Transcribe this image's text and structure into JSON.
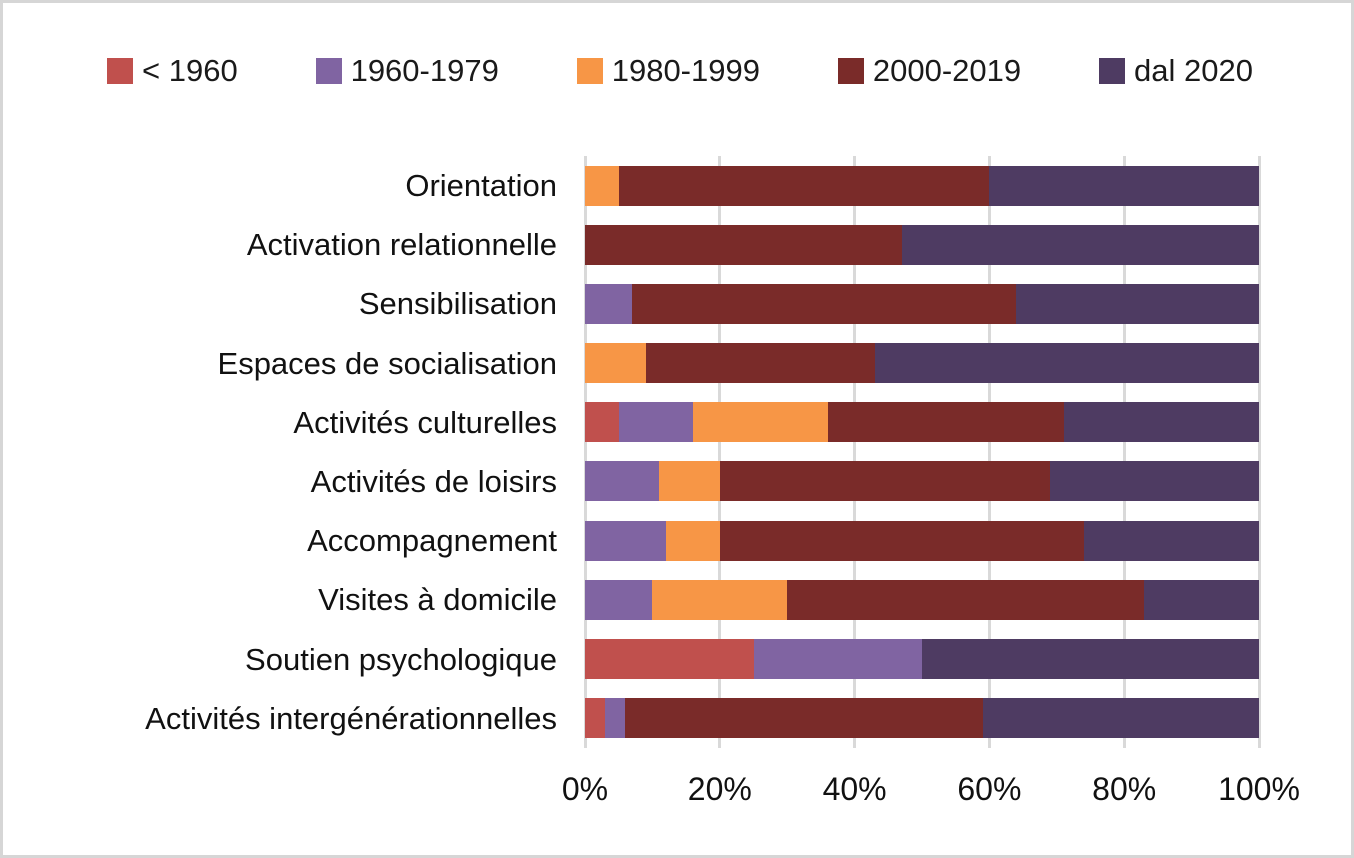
{
  "chart_data": {
    "type": "bar",
    "orientation": "horizontal",
    "stacked": true,
    "unit": "percent",
    "xlim": [
      0,
      100
    ],
    "grid": "vertical",
    "legend_position": "top",
    "gridline_color": "#d9d9d9",
    "categories": [
      "Orientation",
      "Activation relationnelle",
      "Sensibilisation",
      "Espaces de socialisation",
      "Activités culturelles",
      "Activités de loisirs",
      "Accompagnement",
      "Visites à domicile",
      "Soutien psychologique",
      "Activités intergénérationnelles"
    ],
    "series": [
      {
        "name": "< 1960",
        "color": "#C0504D",
        "values": [
          0,
          0,
          0,
          0,
          5,
          0,
          0,
          0,
          25,
          3
        ]
      },
      {
        "name": "1960-1979",
        "color": "#8064A2",
        "values": [
          0,
          0,
          7,
          0,
          11,
          11,
          12,
          10,
          25,
          3
        ]
      },
      {
        "name": "1980-1999",
        "color": "#F79646",
        "values": [
          5,
          0,
          0,
          9,
          20,
          9,
          8,
          20,
          0,
          0
        ]
      },
      {
        "name": "2000-2019",
        "color": "#7A2B29",
        "values": [
          55,
          47,
          57,
          34,
          35,
          49,
          54,
          53,
          0,
          53
        ]
      },
      {
        "name": "dal 2020",
        "color": "#4E3B62",
        "values": [
          40,
          53,
          36,
          57,
          29,
          31,
          26,
          17,
          50,
          41
        ]
      }
    ],
    "x_tick_labels": [
      "0%",
      "20%",
      "40%",
      "60%",
      "80%",
      "100%"
    ],
    "x_tick_values": [
      0,
      20,
      40,
      60,
      80,
      100
    ]
  }
}
